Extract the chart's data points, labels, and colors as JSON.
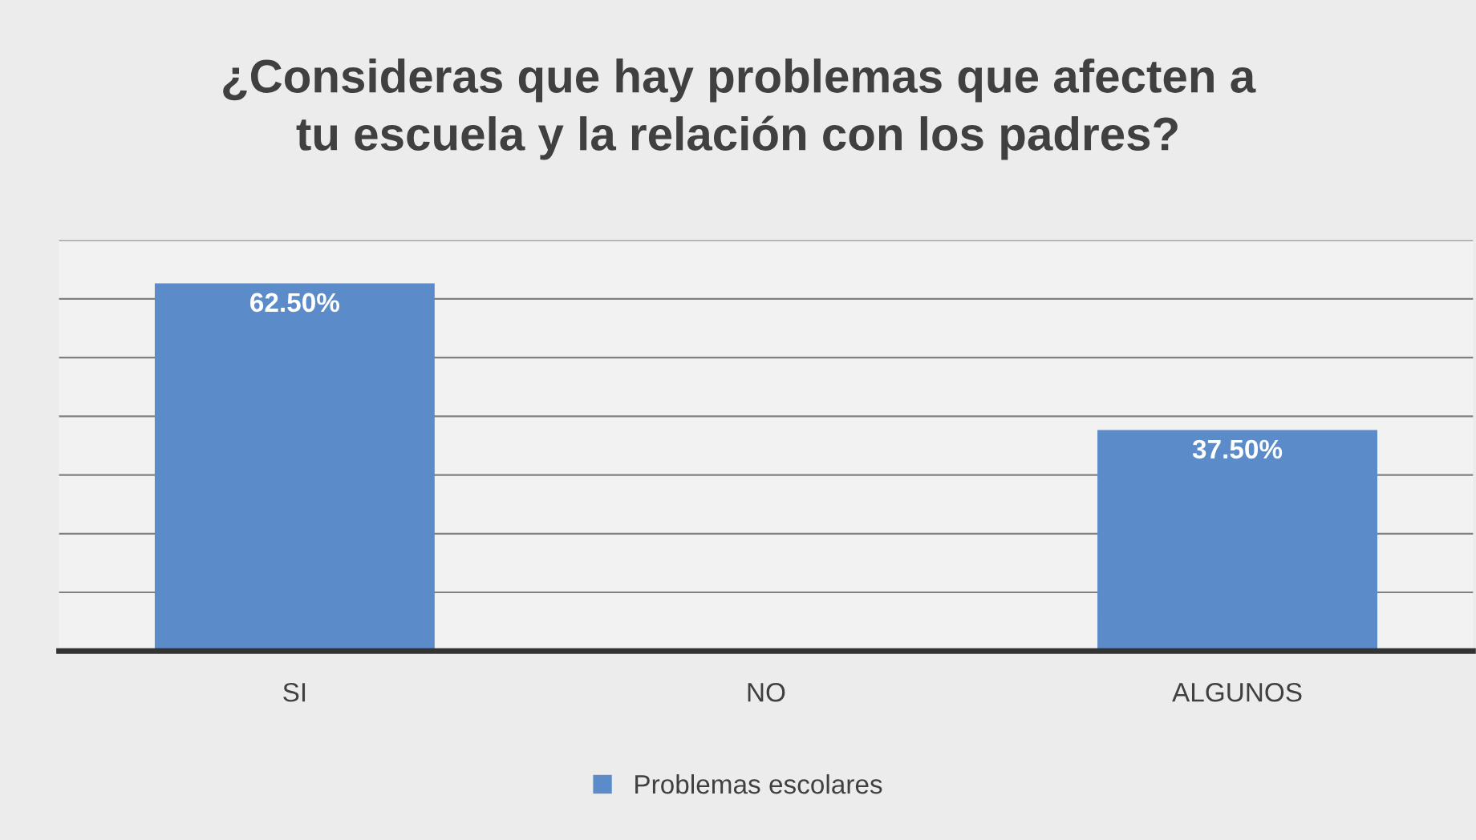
{
  "chart_data": {
    "type": "bar",
    "title": "¿Consideras que hay problemas que afecten a\ntu escuela y la relación con los padres?",
    "categories": [
      "SI",
      "NO",
      "ALGUNOS"
    ],
    "series": [
      {
        "name": "Problemas escolares",
        "color": "#5b8bc9",
        "values": [
          62.5,
          0,
          37.5
        ],
        "value_labels": [
          "62.50%",
          null,
          "37.50%"
        ]
      }
    ],
    "ylim": [
      0,
      70
    ],
    "yticks": [
      {
        "value": 0,
        "label": null
      },
      {
        "value": 10,
        "label": null
      },
      {
        "value": 20,
        "label": null
      },
      {
        "value": 30,
        "label": null
      },
      {
        "value": 40,
        "label": null
      },
      {
        "value": 50,
        "label": null
      },
      {
        "value": 60,
        "label": null
      },
      {
        "value": 70,
        "label": null
      }
    ],
    "tick_labels": "x",
    "grid": "y",
    "legend": "bottom"
  }
}
